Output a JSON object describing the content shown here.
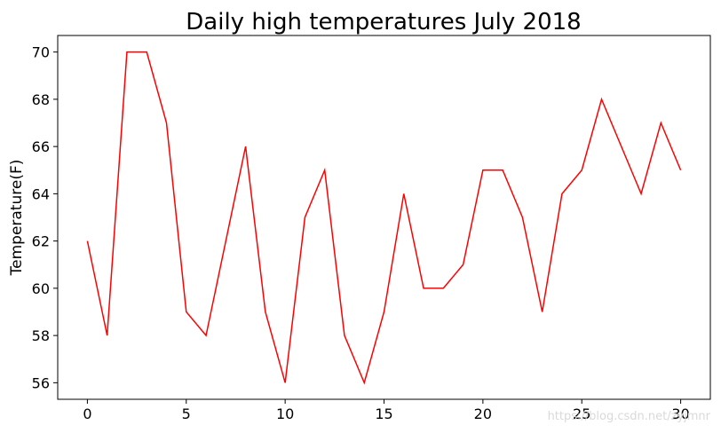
{
  "chart_data": {
    "type": "line",
    "title": "Daily high temperatures July 2018",
    "xlabel": "",
    "ylabel": "Temperature(F)",
    "xlim": [
      -1.5,
      31.5
    ],
    "ylim": [
      55.3,
      70.7
    ],
    "xticks": [
      0,
      5,
      10,
      15,
      20,
      25,
      30
    ],
    "yticks": [
      56,
      58,
      60,
      62,
      64,
      66,
      68,
      70
    ],
    "grid": false,
    "series": [
      {
        "color": "#ff0000",
        "x": [
          0,
          1,
          2,
          3,
          4,
          5,
          6,
          7,
          8,
          9,
          10,
          11,
          12,
          13,
          14,
          15,
          16,
          17,
          18,
          19,
          20,
          21,
          22,
          23,
          24,
          25,
          26,
          27,
          28,
          29,
          30
        ],
        "values": [
          62,
          58,
          70,
          70,
          67,
          59,
          58,
          62,
          66,
          59,
          56,
          63,
          65,
          58,
          56,
          59,
          64,
          60,
          60,
          61,
          65,
          65,
          63,
          59,
          64,
          65,
          68,
          66,
          64,
          67,
          65
        ]
      }
    ]
  },
  "watermark": "https://blog.csdn.net/zyjmnr"
}
